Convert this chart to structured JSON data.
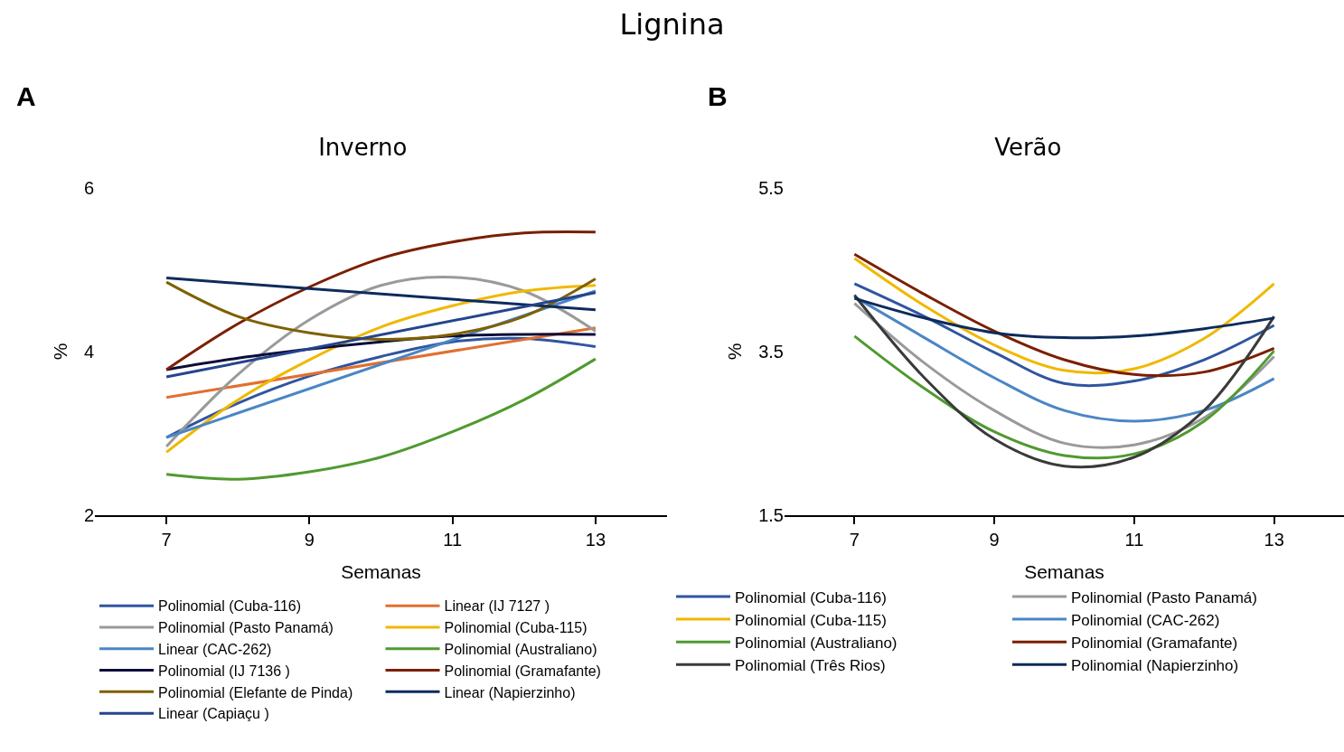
{
  "chart_data": [
    {
      "type": "line",
      "title": "Inverno",
      "xlabel": "Semanas",
      "ylabel": "%",
      "annotations": [
        "Lignina",
        "A"
      ],
      "legend": "bottom",
      "xlim": [
        6,
        14
      ],
      "xticks": [
        7,
        9,
        11,
        13
      ],
      "ylim": [
        2,
        6
      ],
      "yticks": [
        2,
        4,
        6
      ],
      "series": [
        {
          "name": "Polinomial (Cuba-116)",
          "color": "#2f55a0",
          "x": [
            7,
            8,
            9,
            10,
            11,
            12,
            13
          ],
          "values": [
            2.95,
            3.37,
            3.7,
            3.94,
            4.12,
            4.16,
            4.06
          ]
        },
        {
          "name": "Linear (IJ 7127 )",
          "color": "#e07030",
          "x": [
            7,
            13
          ],
          "values": [
            3.44,
            4.29
          ]
        },
        {
          "name": "Polinomial (Pasto Panamá)",
          "color": "#9a9a9a",
          "x": [
            7,
            8,
            9,
            10,
            11,
            12,
            13
          ],
          "values": [
            2.84,
            3.72,
            4.39,
            4.81,
            4.91,
            4.74,
            4.25
          ]
        },
        {
          "name": "Polinomial (Cuba-115)",
          "color": "#f0b800",
          "x": [
            7,
            8,
            9,
            10,
            11,
            12,
            13
          ],
          "values": [
            2.77,
            3.41,
            3.9,
            4.3,
            4.56,
            4.74,
            4.81
          ]
        },
        {
          "name": "Linear (CAC-262)",
          "color": "#4a86c5",
          "x": [
            7,
            13
          ],
          "values": [
            2.95,
            4.74
          ]
        },
        {
          "name": "Polinomial (Australiano)",
          "color": "#4f9a2f",
          "x": [
            7,
            8,
            9,
            10,
            11,
            12,
            13
          ],
          "values": [
            2.5,
            2.44,
            2.53,
            2.71,
            3.02,
            3.41,
            3.91
          ]
        },
        {
          "name": "Polinomial (IJ 7136 )",
          "color": "#0d0d3a",
          "x": [
            7,
            8,
            9,
            10,
            11,
            12,
            13
          ],
          "values": [
            3.78,
            3.92,
            4.03,
            4.12,
            4.19,
            4.21,
            4.21
          ]
        },
        {
          "name": "Polinomial (Gramafante)",
          "color": "#7b1f00",
          "x": [
            7,
            8,
            9,
            10,
            11,
            12,
            13
          ],
          "values": [
            3.78,
            4.34,
            4.79,
            5.14,
            5.34,
            5.45,
            5.46
          ]
        },
        {
          "name": "Polinomial (Elefante de Pinda)",
          "color": "#7f6000",
          "x": [
            7,
            8,
            9,
            10,
            11,
            12,
            13
          ],
          "values": [
            4.85,
            4.43,
            4.23,
            4.15,
            4.21,
            4.43,
            4.89
          ]
        },
        {
          "name": "Linear (Napierzinho)",
          "color": "#0d2b5c",
          "x": [
            7,
            13
          ],
          "values": [
            4.9,
            4.51
          ]
        },
        {
          "name": "Linear (Capiaçu )",
          "color": "#24448f",
          "x": [
            7,
            13
          ],
          "values": [
            3.69,
            4.72
          ]
        }
      ]
    },
    {
      "type": "line",
      "title": "Verão",
      "xlabel": "Semanas",
      "ylabel": "%",
      "annotations": [
        "B"
      ],
      "legend": "bottom",
      "xlim": [
        6,
        14
      ],
      "xticks": [
        7,
        9,
        11,
        13
      ],
      "ylim": [
        1.5,
        5.5
      ],
      "yticks": [
        1.5,
        3.5,
        5.5
      ],
      "series": [
        {
          "name": "Polinomial (Cuba-116)",
          "color": "#2f55a0",
          "x": [
            7,
            8,
            9,
            10,
            11,
            12,
            13
          ],
          "values": [
            4.33,
            3.93,
            3.49,
            3.11,
            3.14,
            3.4,
            3.82
          ]
        },
        {
          "name": "Polinomial (Pasto Panamá)",
          "color": "#9a9a9a",
          "x": [
            7,
            8,
            9,
            10,
            11,
            12,
            13
          ],
          "values": [
            4.09,
            3.36,
            2.78,
            2.38,
            2.36,
            2.69,
            3.44
          ]
        },
        {
          "name": "Polinomial (Cuba-115)",
          "color": "#f0b800",
          "x": [
            7,
            8,
            9,
            10,
            11,
            12,
            13
          ],
          "values": [
            4.64,
            4.06,
            3.58,
            3.27,
            3.29,
            3.66,
            4.33
          ]
        },
        {
          "name": "Polinomial (CAC-262)",
          "color": "#4a86c5",
          "x": [
            7,
            8,
            9,
            10,
            11,
            12,
            13
          ],
          "values": [
            4.17,
            3.67,
            3.18,
            2.78,
            2.65,
            2.78,
            3.17
          ]
        },
        {
          "name": "Polinomial (Australiano)",
          "color": "#4f9a2f",
          "x": [
            7,
            8,
            9,
            10,
            11,
            12,
            13
          ],
          "values": [
            3.69,
            3.05,
            2.52,
            2.23,
            2.25,
            2.65,
            3.51
          ]
        },
        {
          "name": "Polinomial (Gramafante)",
          "color": "#7b1f00",
          "x": [
            7,
            8,
            9,
            10,
            11,
            12,
            13
          ],
          "values": [
            4.69,
            4.2,
            3.75,
            3.4,
            3.22,
            3.25,
            3.54
          ]
        },
        {
          "name": "Polinomial (Três Rios)",
          "color": "#3a3a3a",
          "x": [
            7,
            8,
            9,
            10,
            11,
            12,
            13
          ],
          "values": [
            4.19,
            3.18,
            2.43,
            2.1,
            2.21,
            2.78,
            3.93
          ]
        },
        {
          "name": "Polinomial (Napierzinho)",
          "color": "#0d2b5c",
          "x": [
            7,
            8,
            9,
            10,
            11,
            12,
            13
          ],
          "values": [
            4.15,
            3.91,
            3.73,
            3.67,
            3.69,
            3.78,
            3.91
          ]
        }
      ]
    }
  ]
}
